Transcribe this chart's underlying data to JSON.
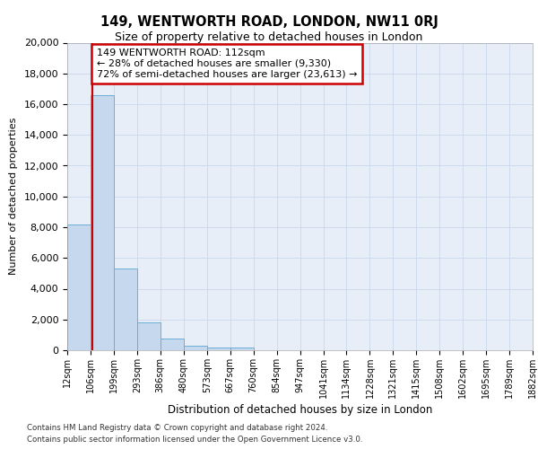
{
  "title_line1": "149, WENTWORTH ROAD, LONDON, NW11 0RJ",
  "title_line2": "Size of property relative to detached houses in London",
  "xlabel": "Distribution of detached houses by size in London",
  "ylabel": "Number of detached properties",
  "annotation_title": "149 WENTWORTH ROAD: 112sqm",
  "annotation_line2": "← 28% of detached houses are smaller (9,330)",
  "annotation_line3": "72% of semi-detached houses are larger (23,613) →",
  "footer_line1": "Contains HM Land Registry data © Crown copyright and database right 2024.",
  "footer_line2": "Contains public sector information licensed under the Open Government Licence v3.0.",
  "bar_left_edges": [
    12,
    106,
    199,
    293,
    386,
    480,
    573,
    667,
    760,
    854,
    947,
    1041,
    1134,
    1228,
    1321,
    1415,
    1508,
    1602,
    1695,
    1789
  ],
  "bar_widths": [
    94,
    93,
    94,
    93,
    94,
    93,
    94,
    93,
    94,
    93,
    94,
    93,
    94,
    93,
    94,
    93,
    94,
    93,
    94,
    93
  ],
  "bar_heights": [
    8200,
    16600,
    5300,
    1800,
    750,
    300,
    200,
    200,
    0,
    0,
    0,
    0,
    0,
    0,
    0,
    0,
    0,
    0,
    0,
    0
  ],
  "bar_color": "#c5d8ee",
  "bar_edge_color": "#6baed6",
  "property_line_x": 112,
  "property_line_color": "#cc0000",
  "annotation_box_edgecolor": "#cc0000",
  "ylim": [
    0,
    20000
  ],
  "yticks": [
    0,
    2000,
    4000,
    6000,
    8000,
    10000,
    12000,
    14000,
    16000,
    18000,
    20000
  ],
  "x_tick_labels": [
    "12sqm",
    "106sqm",
    "199sqm",
    "293sqm",
    "386sqm",
    "480sqm",
    "573sqm",
    "667sqm",
    "760sqm",
    "854sqm",
    "947sqm",
    "1041sqm",
    "1134sqm",
    "1228sqm",
    "1321sqm",
    "1415sqm",
    "1508sqm",
    "1602sqm",
    "1695sqm",
    "1789sqm",
    "1882sqm"
  ],
  "x_tick_positions": [
    12,
    106,
    199,
    293,
    386,
    480,
    573,
    667,
    760,
    854,
    947,
    1041,
    1134,
    1228,
    1321,
    1415,
    1508,
    1602,
    1695,
    1789,
    1882
  ],
  "xlim": [
    12,
    1882
  ],
  "grid_color": "#c8d8ec",
  "background_color": "#e8eef8"
}
